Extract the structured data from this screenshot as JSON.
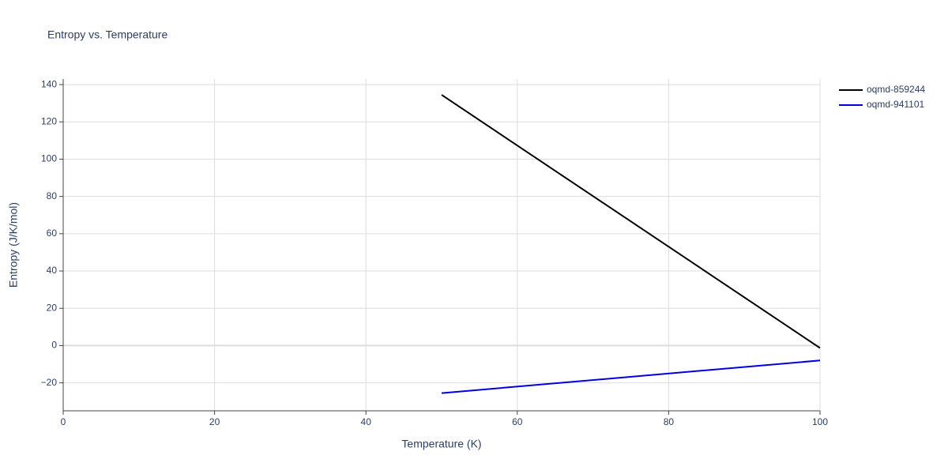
{
  "chart_data": {
    "type": "line",
    "title": "Entropy vs. Temperature",
    "x_label": "Temperature (K)",
    "y_label": "Entropy (J/K/mol)",
    "xlim": [
      0,
      100
    ],
    "xticks": [
      0,
      20,
      40,
      60,
      80,
      100
    ],
    "ylim": [
      -35,
      143
    ],
    "yticks": [
      {
        "value": -20,
        "label": "−20"
      },
      0,
      20,
      40,
      60,
      80,
      100,
      120,
      140
    ],
    "grid": true,
    "legend": "right",
    "series": [
      {
        "name": "oqmd-859244",
        "color": "#000000",
        "x": [
          50,
          100
        ],
        "values": [
          134.5,
          -1.3
        ]
      },
      {
        "name": "oqmd-941101",
        "color": "#0000dd",
        "x": [
          50,
          100
        ],
        "values": [
          -25.5,
          -8
        ]
      }
    ]
  }
}
